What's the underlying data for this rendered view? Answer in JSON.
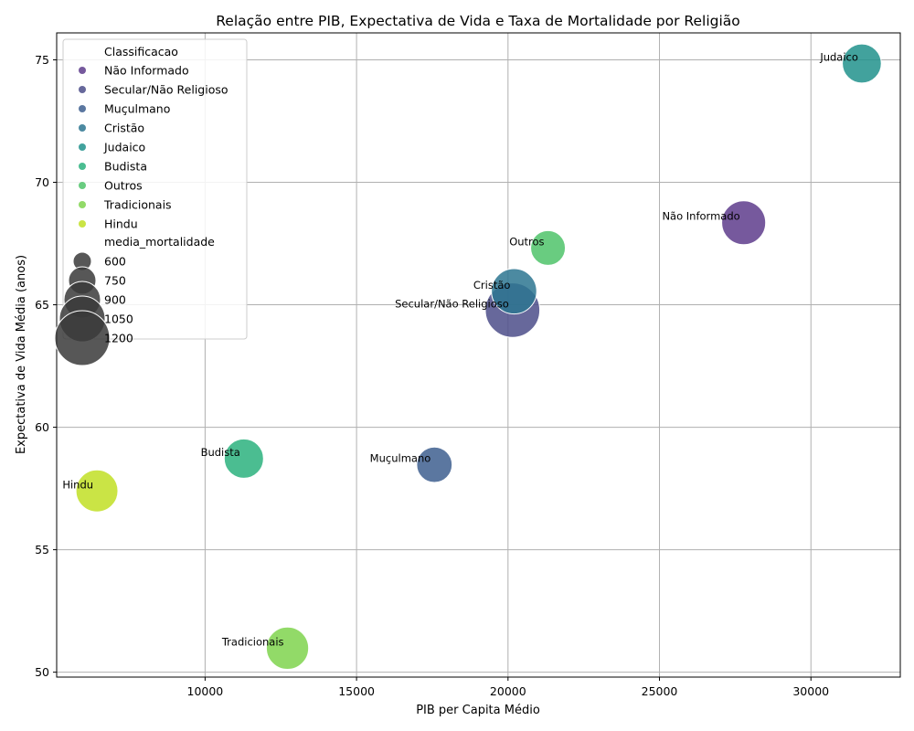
{
  "chart_data": {
    "type": "scatter",
    "title": "Relação entre PIB, Expectativa de Vida e Taxa de Mortalidade por Religião",
    "xlabel": "PIB per Capita Médio",
    "ylabel": "Expectativa de Vida Média (anos)",
    "xlim": [
      5100,
      32950
    ],
    "ylim": [
      49.8,
      76.1
    ],
    "xticks": [
      10000,
      15000,
      20000,
      25000,
      30000
    ],
    "yticks": [
      50,
      55,
      60,
      65,
      70,
      75
    ],
    "grid": true,
    "legend": {
      "placement": "top-left",
      "hue_title": "Classificacao",
      "size_title": "media_mortalidade",
      "size_entries": [
        600,
        750,
        900,
        1050,
        1200
      ]
    },
    "points": [
      {
        "label": "Não Informado",
        "x": 27780,
        "y": 68.35,
        "size": 800,
        "color": "#5e3c8c"
      },
      {
        "label": "Secular/Não Religioso",
        "x": 20150,
        "y": 64.78,
        "size": 1230,
        "color": "#4c4d8a"
      },
      {
        "label": "Muçulmano",
        "x": 17570,
        "y": 58.47,
        "size": 520,
        "color": "#3e5f8f"
      },
      {
        "label": "Cristão",
        "x": 20200,
        "y": 65.55,
        "size": 850,
        "color": "#2d7590"
      },
      {
        "label": "Judaico",
        "x": 31680,
        "y": 74.85,
        "size": 630,
        "color": "#21928c"
      },
      {
        "label": "Budista",
        "x": 11280,
        "y": 58.72,
        "size": 640,
        "color": "#2cb17e"
      },
      {
        "label": "Outros",
        "x": 21320,
        "y": 67.32,
        "size": 500,
        "color": "#4fc36a"
      },
      {
        "label": "Tradicionais",
        "x": 12720,
        "y": 50.98,
        "size": 740,
        "color": "#7fd34e"
      },
      {
        "label": "Hindu",
        "x": 6430,
        "y": 57.4,
        "size": 730,
        "color": "#c1df24"
      }
    ]
  }
}
